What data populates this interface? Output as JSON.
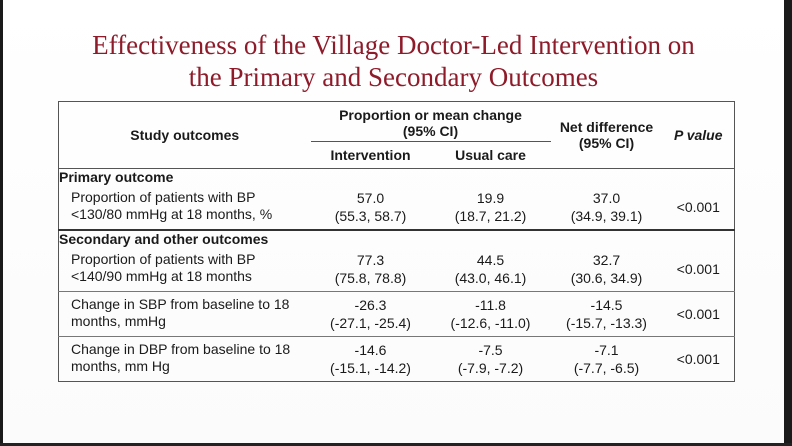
{
  "title_line1": "Effectiveness of the Village Doctor-Led Intervention on",
  "title_line2": "the Primary and Secondary Outcomes",
  "table": {
    "headers": {
      "study_outcomes": "Study outcomes",
      "proportion_line1": "Proportion or mean change",
      "proportion_line2": "(95% CI)",
      "intervention": "Intervention",
      "usual_care": "Usual care",
      "net_line1": "Net difference",
      "net_line2": "(95% CI)",
      "p_value": "P value"
    },
    "sections": [
      {
        "title": "Primary outcome",
        "rows": [
          {
            "label": "Proportion of patients with BP <130/80 mmHg at 18 months, %",
            "intervention": "57.0",
            "intervention_ci": "(55.3, 58.7)",
            "usual": "19.9",
            "usual_ci": "(18.7, 21.2)",
            "net": "37.0",
            "net_ci": "(34.9, 39.1)",
            "p": "<0.001"
          }
        ]
      },
      {
        "title": "Secondary and other outcomes",
        "rows": [
          {
            "label": "Proportion of patients with BP <140/90 mmHg at 18 months",
            "intervention": "77.3",
            "intervention_ci": "(75.8, 78.8)",
            "usual": "44.5",
            "usual_ci": "(43.0, 46.1)",
            "net": "32.7",
            "net_ci": "(30.6, 34.9)",
            "p": "<0.001"
          },
          {
            "label": "Change in SBP from baseline to 18 months, mmHg",
            "intervention": "-26.3",
            "intervention_ci": "(-27.1, -25.4)",
            "usual": "-11.8",
            "usual_ci": "(-12.6, -11.0)",
            "net": "-14.5",
            "net_ci": "(-15.7, -13.3)",
            "p": "<0.001"
          },
          {
            "label": "Change in DBP from baseline to 18 months, mm Hg",
            "intervention": "-14.6",
            "intervention_ci": "(-15.1, -14.2)",
            "usual": "-7.5",
            "usual_ci": "(-7.9, -7.2)",
            "net": "-7.1",
            "net_ci": "(-7.7, -6.5)",
            "p": "<0.001"
          }
        ]
      }
    ]
  }
}
